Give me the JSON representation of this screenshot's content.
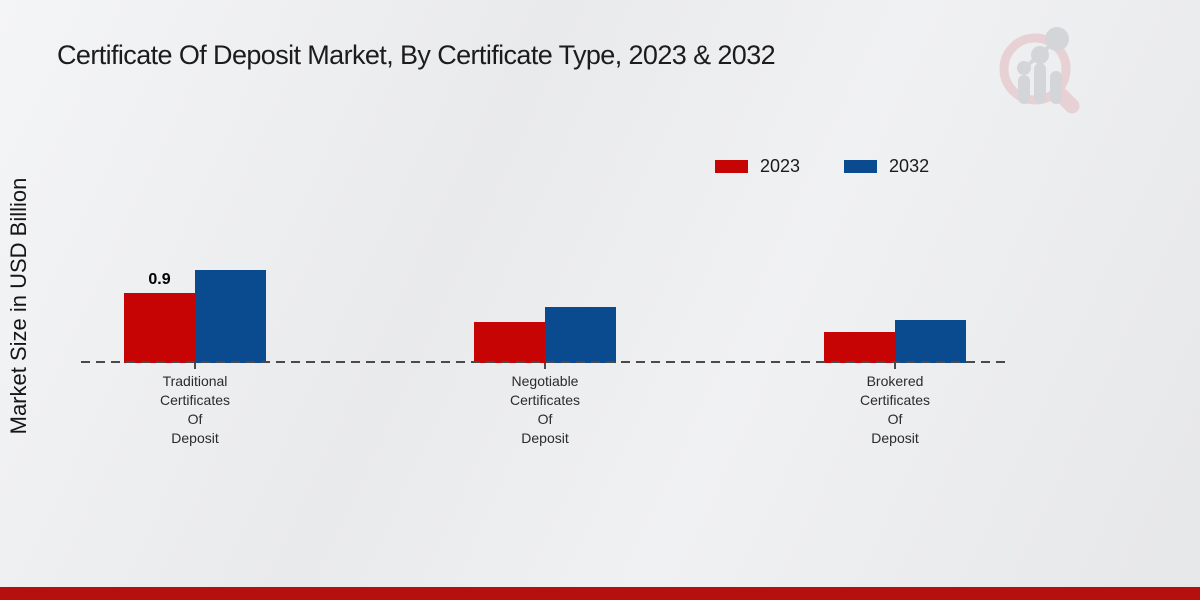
{
  "header": {
    "title": "Certificate Of Deposit Market, By Certificate Type, 2023 & 2032"
  },
  "watermark": {
    "icon": "bar-chart-magnifier-logo"
  },
  "chart_data": {
    "type": "bar",
    "title": "Certificate Of Deposit Market, By Certificate Type, 2023 & 2032",
    "xlabel": "",
    "ylabel": "Market Size in USD Billion",
    "categories": [
      "Traditional Certificates Of Deposit",
      "Negotiable Certificates Of Deposit",
      "Brokered Certificates Of Deposit"
    ],
    "category_label_lines": [
      [
        "Traditional",
        "Certificates",
        "Of",
        "Deposit"
      ],
      [
        "Negotiable",
        "Certificates",
        "Of",
        "Deposit"
      ],
      [
        "Brokered",
        "Certificates",
        "Of",
        "Deposit"
      ]
    ],
    "series": [
      {
        "name": "2023",
        "color": "#c70404",
        "values": [
          0.9,
          0.53,
          0.4
        ],
        "bar_labels": [
          "0.9",
          null,
          null
        ]
      },
      {
        "name": "2032",
        "color": "#0a4a8e",
        "values": [
          1.2,
          0.72,
          0.55
        ],
        "bar_labels": [
          null,
          null,
          null
        ]
      }
    ],
    "ylim": [
      0,
      1.4
    ],
    "grid": false,
    "legend_position": "top-right",
    "baseline_style": "dashed",
    "accent_colors": {
      "bottom_bar": "#b60f0f"
    }
  }
}
